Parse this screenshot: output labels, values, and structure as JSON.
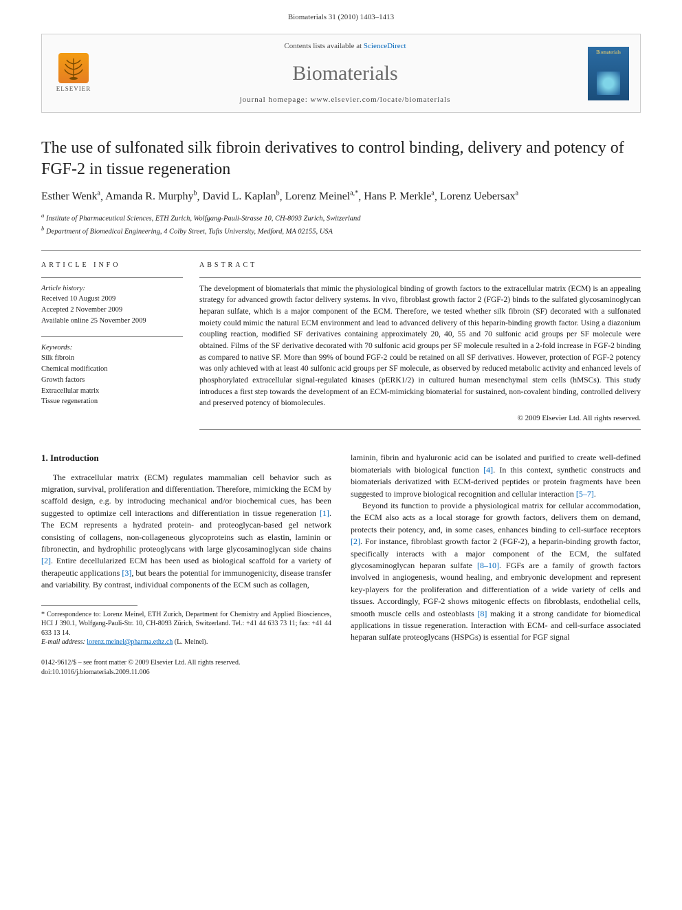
{
  "header": {
    "citation": "Biomaterials 31 (2010) 1403–1413"
  },
  "contentsBar": {
    "elsevier_label": "ELSEVIER",
    "contents_prefix": "Contents lists available at ",
    "contents_link": "ScienceDirect",
    "journal": "Biomaterials",
    "homepage_prefix": "journal homepage: ",
    "homepage_url": "www.elsevier.com/locate/biomaterials",
    "cover_label": "Biomaterials"
  },
  "title": "The use of sulfonated silk fibroin derivatives to control binding, delivery and potency of FGF-2 in tissue regeneration",
  "authors": [
    {
      "name": "Esther Wenk",
      "sup": "a"
    },
    {
      "name": "Amanda R. Murphy",
      "sup": "b"
    },
    {
      "name": "David L. Kaplan",
      "sup": "b"
    },
    {
      "name": "Lorenz Meinel",
      "sup": "a,*"
    },
    {
      "name": "Hans P. Merkle",
      "sup": "a"
    },
    {
      "name": "Lorenz Uebersax",
      "sup": "a"
    }
  ],
  "affiliations": [
    {
      "sup": "a",
      "text": "Institute of Pharmaceutical Sciences, ETH Zurich, Wolfgang-Pauli-Strasse 10, CH-8093 Zurich, Switzerland"
    },
    {
      "sup": "b",
      "text": "Department of Biomedical Engineering, 4 Colby Street, Tufts University, Medford, MA 02155, USA"
    }
  ],
  "articleInfo": {
    "heading": "ARTICLE INFO",
    "history_label": "Article history:",
    "received": "Received 10 August 2009",
    "accepted": "Accepted 2 November 2009",
    "online": "Available online 25 November 2009",
    "keywords_label": "Keywords:",
    "keywords": [
      "Silk fibroin",
      "Chemical modification",
      "Growth factors",
      "Extracellular matrix",
      "Tissue regeneration"
    ]
  },
  "abstract": {
    "heading": "ABSTRACT",
    "body": "The development of biomaterials that mimic the physiological binding of growth factors to the extracellular matrix (ECM) is an appealing strategy for advanced growth factor delivery systems. In vivo, fibroblast growth factor 2 (FGF-2) binds to the sulfated glycosaminoglycan heparan sulfate, which is a major component of the ECM. Therefore, we tested whether silk fibroin (SF) decorated with a sulfonated moiety could mimic the natural ECM environment and lead to advanced delivery of this heparin-binding growth factor. Using a diazonium coupling reaction, modified SF derivatives containing approximately 20, 40, 55 and 70 sulfonic acid groups per SF molecule were obtained. Films of the SF derivative decorated with 70 sulfonic acid groups per SF molecule resulted in a 2-fold increase in FGF-2 binding as compared to native SF. More than 99% of bound FGF-2 could be retained on all SF derivatives. However, protection of FGF-2 potency was only achieved with at least 40 sulfonic acid groups per SF molecule, as observed by reduced metabolic activity and enhanced levels of phosphorylated extracellular signal-regulated kinases (pERK1/2) in cultured human mesenchymal stem cells (hMSCs). This study introduces a first step towards the development of an ECM-mimicking biomaterial for sustained, non-covalent binding, controlled delivery and preserved potency of biomolecules.",
    "copyright": "© 2009 Elsevier Ltd. All rights reserved."
  },
  "introduction": {
    "heading": "1. Introduction",
    "para1_pre": "The extracellular matrix (ECM) regulates mammalian cell behavior such as migration, survival, proliferation and differentiation. Therefore, mimicking the ECM by scaffold design, e.g. by introducing mechanical and/or biochemical cues, has been suggested to optimize cell interactions and differentiation in tissue regeneration ",
    "ref1": "[1]",
    "para1_mid1": ". The ECM represents a hydrated protein- and proteoglycan-based gel network consisting of collagens, non-collageneous glycoproteins such as elastin, laminin or fibronectin, and hydrophilic proteoglycans with large glycosaminoglycan side chains ",
    "ref2": "[2]",
    "para1_mid2": ". Entire decellularized ECM has been used as biological scaffold for a variety of therapeutic applications ",
    "ref3": "[3]",
    "para1_post": ", but bears the potential for immunogenicity, disease transfer and variability. By contrast, individual components of the ECM such as collagen,",
    "para2_pre": "laminin, fibrin and hyaluronic acid can be isolated and purified to create well-defined biomaterials with biological function ",
    "ref4": "[4]",
    "para2_mid": ". In this context, synthetic constructs and biomaterials derivatized with ECM-derived peptides or protein fragments have been suggested to improve biological recognition and cellular interaction ",
    "ref57": "[5–7]",
    "para2_post": ".",
    "para3_pre": "Beyond its function to provide a physiological matrix for cellular accommodation, the ECM also acts as a local storage for growth factors, delivers them on demand, protects their potency, and, in some cases, enhances binding to cell-surface receptors ",
    "ref2b": "[2]",
    "para3_mid1": ". For instance, fibroblast growth factor 2 (FGF-2), a heparin-binding growth factor, specifically interacts with a major component of the ECM, the sulfated glycosaminoglycan heparan sulfate ",
    "ref810": "[8–10]",
    "para3_mid2": ". FGFs are a family of growth factors involved in angiogenesis, wound healing, and embryonic development and represent key-players for the proliferation and differentiation of a wide variety of cells and tissues. Accordingly, FGF-2 shows mitogenic effects on fibroblasts, endothelial cells, smooth muscle cells and osteoblasts ",
    "ref8": "[8]",
    "para3_post": " making it a strong candidate for biomedical applications in tissue regeneration. Interaction with ECM- and cell-surface associated heparan sulfate proteoglycans (HSPGs) is essential for FGF signal"
  },
  "footnote": {
    "corr_label": "* Correspondence to: ",
    "corr_text": "Lorenz Meinel, ETH Zurich, Department for Chemistry and Applied Biosciences, HCI J 390.1, Wolfgang-Pauli-Str. 10, CH-8093 Zürich, Switzerland. Tel.: +41 44 633 73 11; fax: +41 44 633 13 14.",
    "email_label": "E-mail address: ",
    "email": "lorenz.meinel@pharma.ethz.ch",
    "email_suffix": " (L. Meinel)."
  },
  "doi": {
    "line1": "0142-9612/$ – see front matter © 2009 Elsevier Ltd. All rights reserved.",
    "line2": "doi:10.1016/j.biomaterials.2009.11.006"
  },
  "colors": {
    "link": "#0066bb",
    "text": "#1a1a1a",
    "muted": "#6b6b6b"
  }
}
